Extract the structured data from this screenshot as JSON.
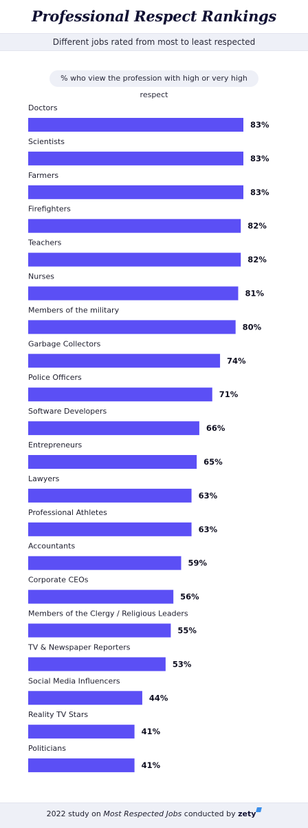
{
  "header": {
    "title": "Professional Respect Rankings",
    "subtitle": "Different jobs rated from most to least respected"
  },
  "legend_pill": "% who view the profession with high or very high respect",
  "colors": {
    "bar": "#5b4ff5",
    "background": "#ffffff",
    "band": "#eef0f7"
  },
  "chart_data": {
    "type": "bar",
    "orientation": "horizontal",
    "unit": "%",
    "title": "Professional Respect Rankings",
    "subtitle": "Different jobs rated from most to least respected",
    "categories": [
      "Doctors",
      "Scientists",
      "Farmers",
      "Firefighters",
      "Teachers",
      "Nurses",
      "Members of the military",
      "Garbage Collectors",
      "Police Officers",
      "Software Developers",
      "Entrepreneurs",
      "Lawyers",
      "Professional Athletes",
      "Accountants",
      "Corporate CEOs",
      "Members of the Clergy / Religious Leaders",
      "TV & Newspaper Reporters",
      "Social Media Influencers",
      "Reality TV Stars",
      "Politicians"
    ],
    "values": [
      83,
      83,
      83,
      82,
      82,
      81,
      80,
      74,
      71,
      66,
      65,
      63,
      63,
      59,
      56,
      55,
      53,
      44,
      41,
      41
    ],
    "labels": [
      "83%",
      "83%",
      "83%",
      "82%",
      "82%",
      "81%",
      "80%",
      "74%",
      "71%",
      "66%",
      "65%",
      "63%",
      "63%",
      "59%",
      "56%",
      "55%",
      "53%",
      "44%",
      "41%",
      "41%"
    ],
    "xlim": [
      0,
      83
    ],
    "grid": false,
    "legend": "top"
  },
  "footer": {
    "prefix": "2022 study on ",
    "study": "Most Respected Jobs",
    "middle": " conducted by ",
    "brand": "zety"
  }
}
